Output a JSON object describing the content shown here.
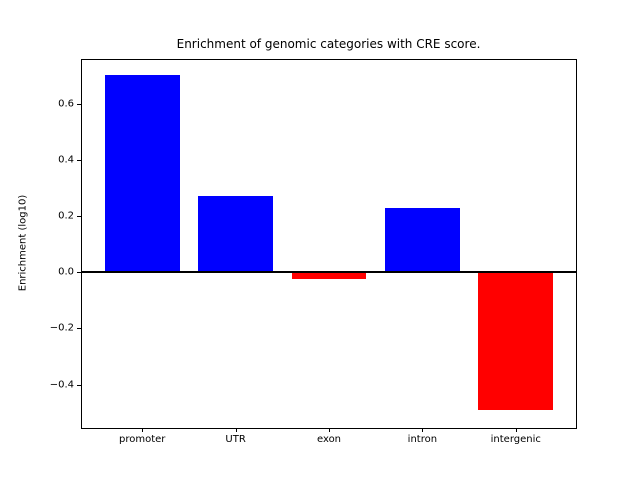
{
  "title": "Enrichment of genomic categories with CRE score.",
  "chart_data": {
    "type": "bar",
    "title": "Enrichment of genomic categories with CRE score.",
    "xlabel": "",
    "ylabel": "Enrichment (log10)",
    "categories": [
      "promoter",
      "UTR",
      "exon",
      "intron",
      "intergenic"
    ],
    "values": [
      0.7,
      0.27,
      -0.025,
      0.23,
      -0.49
    ],
    "bar_colors": [
      "#0000ff",
      "#0000ff",
      "#ff0000",
      "#0000ff",
      "#ff0000"
    ],
    "positive_color": "#0000ff",
    "negative_color": "#ff0000",
    "yticks": [
      0.6,
      0.4,
      0.2,
      0.0,
      -0.2,
      -0.4
    ],
    "ytick_labels": [
      "0.6",
      "0.4",
      "0.2",
      "0.0",
      "−0.2",
      "−0.4"
    ],
    "ylim": [
      -0.554,
      0.755
    ],
    "xlim": [
      -0.645,
      4.645
    ],
    "bar_width": 0.8,
    "grid": false,
    "legend": null,
    "zero_line": true,
    "background_color": "#ffffff",
    "axis_color": "#000000"
  }
}
